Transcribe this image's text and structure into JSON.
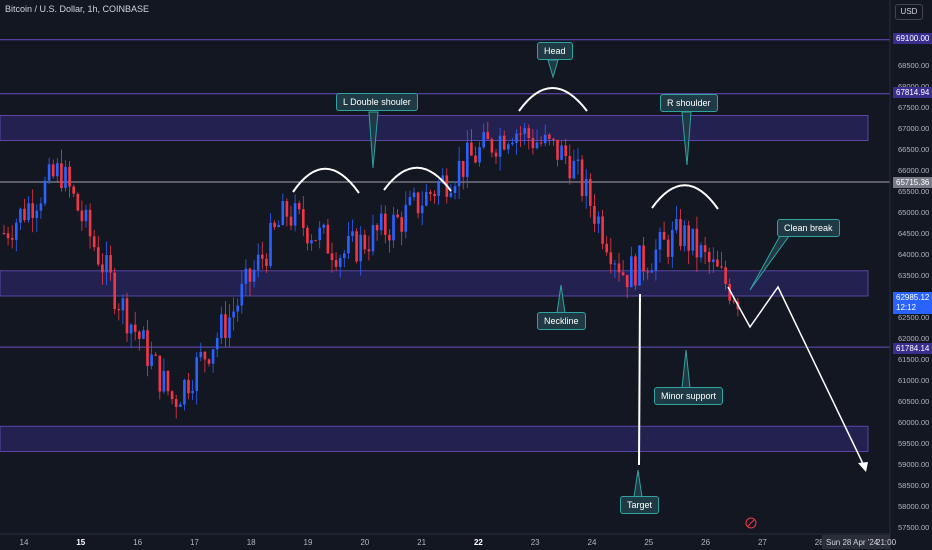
{
  "title": "Bitcoin / U.S. Dollar, 1h, COINBASE",
  "currency_button": "USD",
  "axis": {
    "y_ticks": [
      "68500.00",
      "68000.00",
      "67500.00",
      "67000.00",
      "66500.00",
      "66000.00",
      "65500.00",
      "65000.00",
      "64500.00",
      "64000.00",
      "63500.00",
      "63000.00",
      "62500.00",
      "62000.00",
      "61500.00",
      "61000.00",
      "60500.00",
      "60000.00",
      "59500.00",
      "59000.00",
      "58500.00",
      "58000.00",
      "57500.00"
    ],
    "x_ticks": [
      "14",
      "15",
      "16",
      "17",
      "18",
      "19",
      "20",
      "21",
      "22",
      "23",
      "24",
      "25",
      "26",
      "27",
      "28"
    ],
    "bold_x_ticks": [
      "15",
      "22"
    ],
    "date_label": "Sun 28 Apr '24",
    "time_label": "21:00"
  },
  "price_tags": {
    "level_69100": "69100.00",
    "level_67814": "67814.94",
    "level_65715": "65715.36",
    "current_price": "62985.12",
    "current_countdown": "12:12",
    "level_61784": "61784.14"
  },
  "annotations": {
    "head": "Head",
    "left_shoulder": "L Double shouler",
    "right_shoulder": "R shoulder",
    "neckline": "Neckline",
    "clean_break": "Clean break",
    "minor_support": "Minor support",
    "target": "Target"
  },
  "colors": {
    "background": "#131722",
    "bull_candle": "#2962ff",
    "bear_candle": "#f23645",
    "zone": "#2a2660",
    "level_line": "#6a4fc2",
    "callout_bg": "#1f3a44",
    "callout_border": "#2fa3a0"
  },
  "chart_data": {
    "type": "line",
    "symbol": "BTC/USD",
    "interval": "1h",
    "x": [
      "14",
      "15",
      "16",
      "17",
      "18",
      "19",
      "20",
      "21",
      "22",
      "23",
      "24",
      "25",
      "26",
      "27"
    ],
    "series": [
      {
        "values": [
          64500,
          66000,
          63000,
          60500,
          62500,
          65000,
          64000,
          64800,
          66000,
          67000,
          66300,
          63500,
          64500,
          62985
        ]
      }
    ],
    "levels": [
      69100.0,
      67814.94,
      65715.36,
      61784.14
    ],
    "zones": [
      [
        66700,
        67300
      ],
      [
        63000,
        63600
      ],
      [
        59300,
        59900
      ]
    ],
    "ylim": [
      57500,
      69300
    ]
  }
}
